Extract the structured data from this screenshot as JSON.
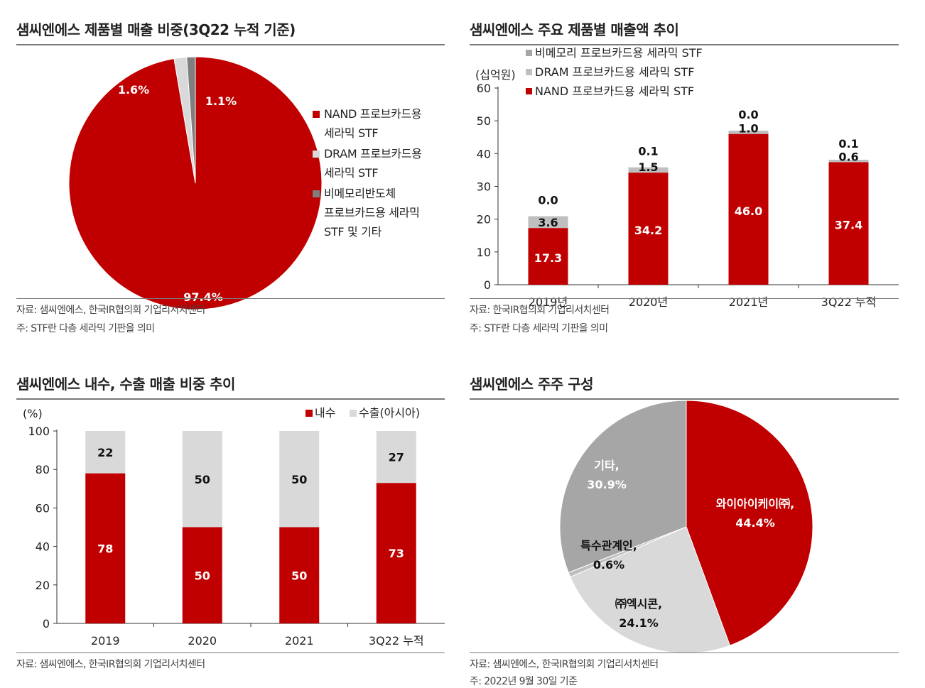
{
  "colors": {
    "red": "#c00000",
    "light": "#d9d9d9",
    "mid": "#a6a6a6",
    "dark": "#7f7f7f"
  },
  "panel1": {
    "title": "샘씨엔에스 제품별 매출 비중(3Q22 누적 기준)",
    "footnotes": [
      "자료: 샘씨엔에스, 한국IR협의회 기업리서치센터",
      "주: STF란 다층 세라믹 기판을 의미"
    ],
    "legend": [
      {
        "lines": [
          "NAND 프로브카드용",
          "세라믹 STF"
        ],
        "color": "#c00000"
      },
      {
        "lines": [
          "DRAM 프로브카드용",
          "세라믹 STF"
        ],
        "color": "#d9d9d9"
      },
      {
        "lines": [
          "비메모리반도체",
          "프로브카드용 세라믹",
          "STF 및 기타"
        ],
        "color": "#7f7f7f"
      }
    ]
  },
  "panel2": {
    "title": "샘씨엔에스 주요 제품별 매출액 추이",
    "footnotes": [
      "자료: 한국IR협의회 기업리서치센터",
      "주: STF란 다층 세라믹 기판을 의미"
    ]
  },
  "panel3": {
    "title": "샘씨엔에스 내수, 수출 매출 비중 추이",
    "footnotes": [
      "자료: 샘씨엔에스, 한국IR협의회 기업리서치센터"
    ]
  },
  "panel4": {
    "title": "샘씨엔에스 주주 구성",
    "footnotes": [
      "자료: 샘씨엔에스, 한국IR협의회 기업리서치센터",
      "주: 2022년 9월 30일 기준"
    ]
  },
  "chart_data": [
    {
      "type": "pie",
      "title": "샘씨엔에스 제품별 매출 비중(3Q22 누적 기준)",
      "slices": [
        {
          "name": "NAND 프로브카드용 세라믹 STF",
          "value": 97.4,
          "label": "97.4%",
          "color": "#c00000"
        },
        {
          "name": "DRAM 프로브카드용 세라믹 STF",
          "value": 1.6,
          "label": "1.6%",
          "color": "#d9d9d9"
        },
        {
          "name": "비메모리반도체 프로브카드용 세라믹 STF 및 기타",
          "value": 1.1,
          "label": "1.1%",
          "color": "#7f7f7f"
        }
      ]
    },
    {
      "type": "bar",
      "stacked": true,
      "title": "샘씨엔에스 주요 제품별 매출액 추이",
      "unit": "(십억원)",
      "categories": [
        "2019년",
        "2020년",
        "2021년",
        "3Q22 누적"
      ],
      "ylim": [
        0,
        60
      ],
      "yticks": [
        "0",
        "10",
        "20",
        "30",
        "40",
        "50",
        "60"
      ],
      "series": [
        {
          "name": "NAND 프로브카드용 세라믹 STF",
          "color": "#c00000",
          "values": [
            17.3,
            34.2,
            46.0,
            37.4
          ],
          "labels": [
            "17.3",
            "34.2",
            "46.0",
            "37.4"
          ]
        },
        {
          "name": "DRAM 프로브카드용 세라믹 STF",
          "color": "#bfbfbf",
          "values": [
            3.6,
            1.5,
            1.0,
            0.6
          ],
          "labels": [
            "3.6",
            "1.5",
            "1.0",
            "0.6"
          ]
        },
        {
          "name": "비메모리 프로브카드용 세라믹 STF",
          "color": "#a6a6a6",
          "values": [
            0.0,
            0.1,
            0.0,
            0.1
          ],
          "labels": [
            "0.0",
            "0.1",
            "0.0",
            "0.1"
          ]
        }
      ],
      "legend_order": [
        2,
        1,
        0
      ]
    },
    {
      "type": "bar",
      "stacked": true,
      "title": "샘씨엔에스 내수, 수출 매출 비중 추이",
      "unit": "(%)",
      "categories": [
        "2019",
        "2020",
        "2021",
        "3Q22 누적"
      ],
      "ylim": [
        0,
        100
      ],
      "yticks": [
        "0",
        "20",
        "40",
        "60",
        "80",
        "100"
      ],
      "series": [
        {
          "name": "내수",
          "color": "#c00000",
          "values": [
            78,
            50,
            50,
            73
          ],
          "labels": [
            "78",
            "50",
            "50",
            "73"
          ]
        },
        {
          "name": "수출(아시아)",
          "color": "#d9d9d9",
          "values": [
            22,
            50,
            50,
            27
          ],
          "labels": [
            "22",
            "50",
            "50",
            "27"
          ]
        }
      ]
    },
    {
      "type": "pie",
      "title": "샘씨엔에스 주주 구성",
      "slices": [
        {
          "name": "와이아이케이㈜",
          "value": 44.4,
          "lines": [
            "와이아이케이㈜,",
            "44.4%"
          ],
          "color": "#c00000"
        },
        {
          "name": "㈜엑시콘",
          "value": 24.1,
          "lines": [
            "㈜엑시콘,",
            "24.1%"
          ],
          "color": "#d9d9d9"
        },
        {
          "name": "특수관계인",
          "value": 0.6,
          "lines": [
            "특수관계인,",
            "0.6%"
          ],
          "color": "#bfbfbf"
        },
        {
          "name": "기타",
          "value": 30.9,
          "lines": [
            "기타,",
            "30.9%"
          ],
          "color": "#a6a6a6"
        }
      ]
    }
  ]
}
